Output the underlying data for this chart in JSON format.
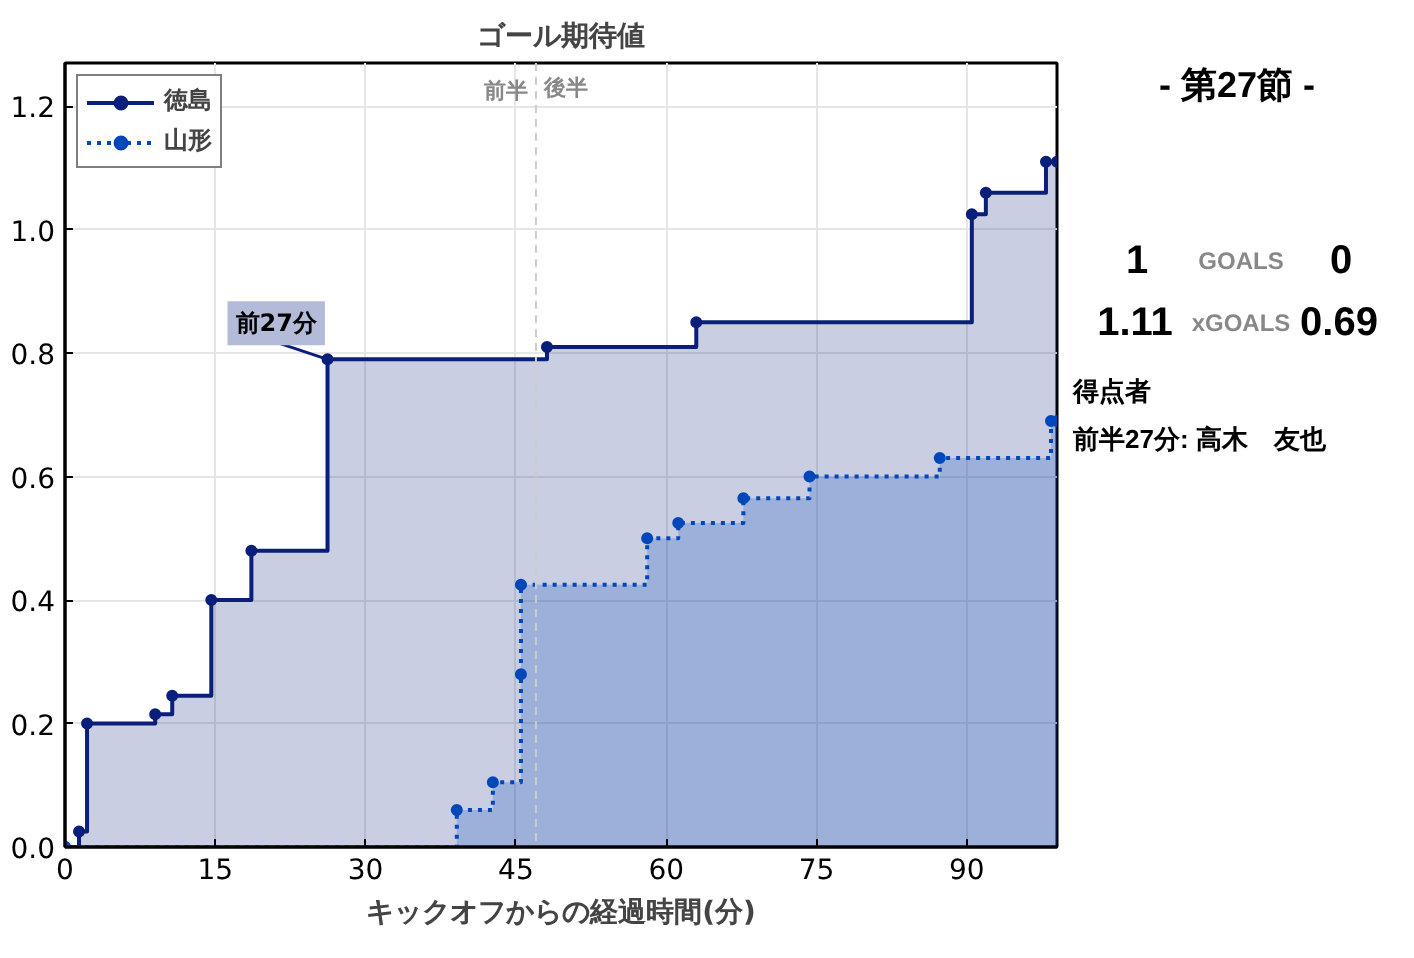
{
  "chart_data": {
    "type": "step",
    "title": "ゴール期待値",
    "xlabel": "キックオフからの経過時間(分)",
    "xlim": [
      0,
      99
    ],
    "ylim": [
      0,
      1.27
    ],
    "xticks": [
      0,
      15,
      30,
      45,
      60,
      75,
      90
    ],
    "yticks": [
      {
        "value": 0,
        "label": "0.0"
      },
      {
        "value": 0.2,
        "label": "0.2"
      },
      {
        "value": 0.4,
        "label": "0.4"
      },
      {
        "value": 0.6,
        "label": "0.6"
      },
      {
        "value": 0.8,
        "label": "0.8"
      },
      {
        "value": 1,
        "label": "1.0"
      },
      {
        "value": 1.2,
        "label": "1.2"
      }
    ],
    "grid": true,
    "legend": "top left",
    "marker": "circle",
    "series": [
      {
        "name": "徳島",
        "color": "#0a1f7a",
        "line_style": "solid",
        "x": [
          0,
          1.4,
          2.2,
          9.0,
          10.7,
          14.6,
          18.6,
          26.2,
          48.1,
          63.0,
          90.5,
          91.9,
          97.9,
          99
        ],
        "values": [
          0,
          0.025,
          0.2,
          0.215,
          0.245,
          0.4,
          0.48,
          0.79,
          0.81,
          0.85,
          1.025,
          1.06,
          1.11,
          1.11
        ]
      },
      {
        "name": "山形",
        "color": "#0047bb",
        "line_style": "dotted",
        "x": [
          0,
          39.1,
          42.7,
          45.5,
          45.5,
          58.1,
          61.2,
          67.7,
          74.3,
          87.3,
          98.4,
          99
        ],
        "values": [
          0,
          0.06,
          0.105,
          0.28,
          0.425,
          0.5,
          0.525,
          0.565,
          0.6,
          0.63,
          0.69,
          0.69
        ]
      }
    ],
    "ref_lines": [
      {
        "axis": "x",
        "value": 47,
        "label": "前半",
        "color": "#cccccc",
        "line_style": "dashed"
      }
    ],
    "annotations": [
      {
        "text": "前27分",
        "x": 26.2,
        "y": 0.79
      },
      {
        "text": "後半",
        "x": 47,
        "y": 1.23
      },
      "- 第27節 -",
      "1",
      "GOALS",
      "0",
      "1.11",
      "xGOALS",
      "0.69",
      "得点者",
      "前半27分: 高木　友也"
    ]
  }
}
